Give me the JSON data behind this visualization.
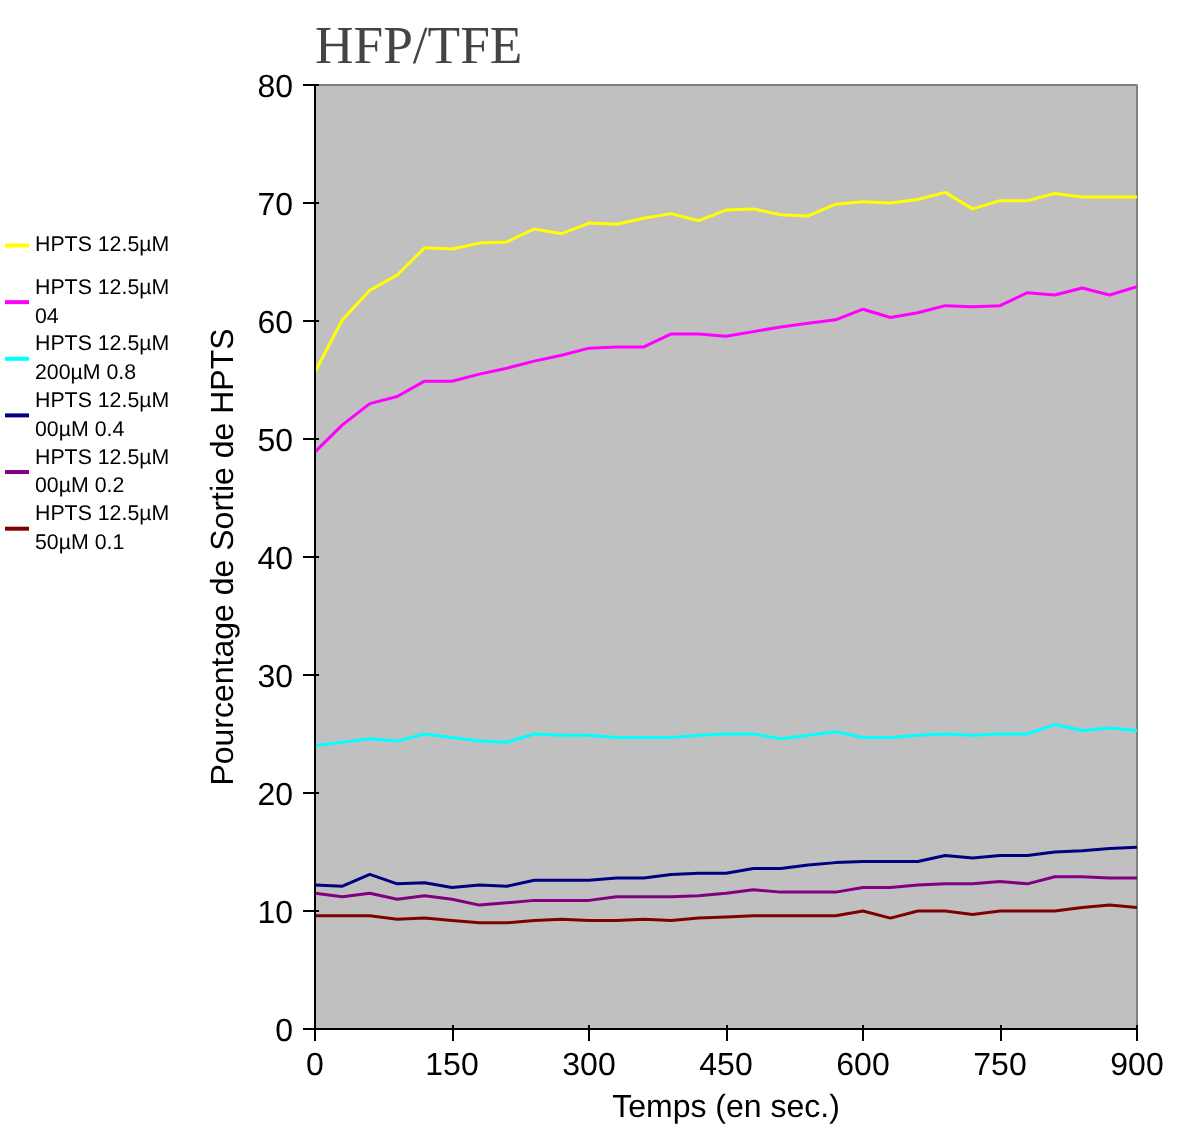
{
  "chart_data": {
    "type": "line",
    "title": "HFP/TFE",
    "xlabel": "Temps (en sec.)",
    "ylabel": "Pourcentage de Sortie de HPTS",
    "x": [
      0,
      30,
      60,
      90,
      120,
      150,
      180,
      210,
      240,
      270,
      300,
      330,
      360,
      390,
      420,
      450,
      480,
      510,
      540,
      570,
      600,
      630,
      660,
      690,
      720,
      750,
      780,
      810,
      840,
      870,
      900
    ],
    "xlim": [
      0,
      900
    ],
    "xticks": [
      0,
      150,
      300,
      450,
      600,
      750,
      900
    ],
    "ylim": [
      0,
      80
    ],
    "yticks": [
      0,
      10,
      20,
      30,
      40,
      50,
      60,
      70,
      80
    ],
    "grid": false,
    "legend": "left",
    "marker": "none",
    "line_style": "solid",
    "series": [
      {
        "name": "HPTS 12.5µM",
        "color": "#ffff00",
        "values": [
          55.7,
          60.1,
          62.6,
          63.9,
          66.2,
          66.1,
          66.6,
          66.7,
          67.8,
          67.4,
          68.3,
          68.2,
          68.7,
          69.1,
          68.5,
          69.4,
          69.5,
          69.0,
          68.9,
          69.9,
          70.1,
          70.0,
          70.3,
          70.9,
          69.5,
          70.2,
          70.2,
          70.8,
          70.5,
          70.5,
          70.5
        ]
      },
      {
        "name": "HPTS 12.5µM\n04",
        "color": "#ff00ff",
        "values": [
          48.9,
          51.2,
          53.0,
          53.6,
          54.9,
          54.9,
          55.5,
          56.0,
          56.6,
          57.1,
          57.7,
          57.8,
          57.8,
          58.9,
          58.9,
          58.7,
          59.1,
          59.5,
          59.8,
          60.1,
          61.0,
          60.3,
          60.7,
          61.3,
          61.2,
          61.3,
          62.4,
          62.2,
          62.8,
          62.2,
          62.9
        ]
      },
      {
        "name": "HPTS 12.5µM\n200µM 0.8",
        "color": "#00ffff",
        "values": [
          24.0,
          24.3,
          24.6,
          24.4,
          25.0,
          24.7,
          24.4,
          24.3,
          25.0,
          24.9,
          24.9,
          24.7,
          24.7,
          24.7,
          24.9,
          25.0,
          25.0,
          24.6,
          24.9,
          25.2,
          24.7,
          24.7,
          24.9,
          25.0,
          24.9,
          25.0,
          25.0,
          25.8,
          25.3,
          25.5,
          25.3
        ]
      },
      {
        "name": "HPTS 12.5µM\n00µM 0.4",
        "color": "#000080",
        "values": [
          12.2,
          12.1,
          13.1,
          12.3,
          12.4,
          12.0,
          12.2,
          12.1,
          12.6,
          12.6,
          12.6,
          12.8,
          12.8,
          13.1,
          13.2,
          13.2,
          13.6,
          13.6,
          13.9,
          14.1,
          14.2,
          14.2,
          14.2,
          14.7,
          14.5,
          14.7,
          14.7,
          15.0,
          15.1,
          15.3,
          15.4
        ]
      },
      {
        "name": "HPTS 12.5µM\n00µM 0.2",
        "color": "#800080",
        "values": [
          11.5,
          11.2,
          11.5,
          11.0,
          11.3,
          11.0,
          10.5,
          10.7,
          10.9,
          10.9,
          10.9,
          11.2,
          11.2,
          11.2,
          11.3,
          11.5,
          11.8,
          11.6,
          11.6,
          11.6,
          12.0,
          12.0,
          12.2,
          12.3,
          12.3,
          12.5,
          12.3,
          12.9,
          12.9,
          12.8,
          12.8
        ]
      },
      {
        "name": "HPTS 12.5µM\n50µM 0.1",
        "color": "#800000",
        "values": [
          9.6,
          9.6,
          9.6,
          9.3,
          9.4,
          9.2,
          9.0,
          9.0,
          9.2,
          9.3,
          9.2,
          9.2,
          9.3,
          9.2,
          9.4,
          9.5,
          9.6,
          9.6,
          9.6,
          9.6,
          10.0,
          9.4,
          10.0,
          10.0,
          9.7,
          10.0,
          10.0,
          10.0,
          10.3,
          10.5,
          10.3
        ]
      }
    ]
  }
}
